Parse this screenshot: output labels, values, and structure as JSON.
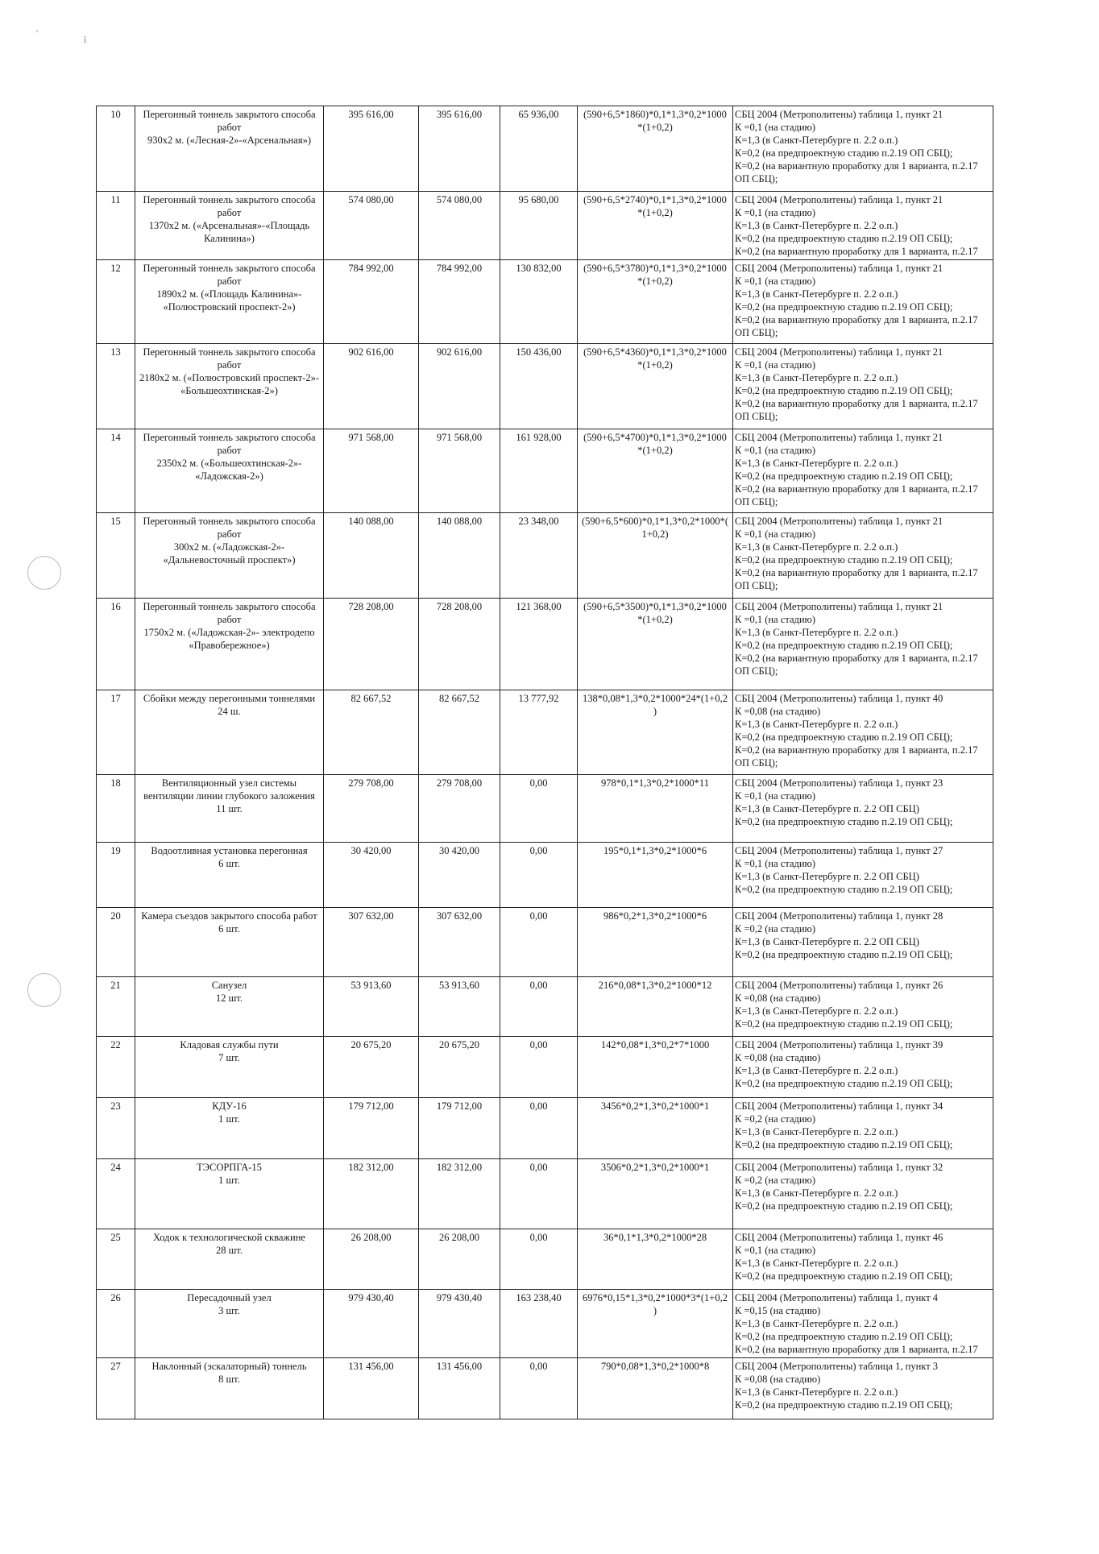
{
  "scan_marks": [
    "'",
    "ì"
  ],
  "rows": [
    {
      "num": "10",
      "name": "Перегонный тоннель закрытого способа\nработ\n930х2 м. («Лесная-2»-«Арсенальная»)",
      "v1": "395 616,00",
      "v2": "395 616,00",
      "v3": "65 936,00",
      "formula": "(590+6,5*1860)*0,1*1,3*0,2*1000\n*(1+0,2)",
      "basis": "СБЦ 2004 (Метрополитены) таблица 1, пункт 21\nК =0,1 (на стадию)\nК=1,3 (в Санкт-Петербурге п. 2.2 о.п.)\nК=0,2 (на предпроектную стадию п.2.19 ОП СБЦ);\nК=0,2 (на вариантную проработку для 1 варианта, п.2.17\nОП СБЦ);"
    },
    {
      "num": "11",
      "name": "Перегонный тоннель закрытого способа\nработ\n1370х2 м. («Арсенальная»-«Площадь\nКалинина»)",
      "v1": "574 080,00",
      "v2": "574 080,00",
      "v3": "95 680,00",
      "formula": "(590+6,5*2740)*0,1*1,3*0,2*1000\n*(1+0,2)",
      "basis": "СБЦ 2004 (Метрополитены) таблица 1, пункт 21\nК =0,1 (на стадию)\nК=1,3 (в Санкт-Петербурге п. 2.2 о.п.)\nК=0,2 (на предпроектную стадию п.2.19 ОП СБЦ);\nК=0,2 (на вариантную проработку для 1 варианта, п.2.17"
    },
    {
      "num": "12",
      "name": "Перегонный тоннель закрытого способа\nработ\n1890х2 м. («Площадь Калинина»-\n«Полюстровский проспект-2»)",
      "v1": "784 992,00",
      "v2": "784 992,00",
      "v3": "130 832,00",
      "formula": "(590+6,5*3780)*0,1*1,3*0,2*1000\n*(1+0,2)",
      "basis": "СБЦ 2004 (Метрополитены) таблица 1, пункт 21\nК =0,1 (на стадию)\nК=1,3 (в Санкт-Петербурге п. 2.2 о.п.)\nК=0,2 (на предпроектную стадию п.2.19 ОП СБЦ);\nК=0,2 (на вариантную проработку для 1 варианта, п.2.17\nОП СБЦ);"
    },
    {
      "num": "13",
      "name": "Перегонный тоннель закрытого способа\nработ\n2180х2 м. («Полюстровский проспект-2»-\n«Большеохтинская-2»)",
      "v1": "902 616,00",
      "v2": "902 616,00",
      "v3": "150 436,00",
      "formula": "(590+6,5*4360)*0,1*1,3*0,2*1000\n*(1+0,2)",
      "basis": "СБЦ 2004 (Метрополитены) таблица 1, пункт 21\nК =0,1 (на стадию)\nК=1,3 (в Санкт-Петербурге п. 2.2 о.п.)\nК=0,2 (на предпроектную стадию п.2.19 ОП СБЦ);\nК=0,2 (на вариантную проработку для 1 варианта, п.2.17\nОП СБЦ);"
    },
    {
      "num": "14",
      "name": "Перегонный тоннель закрытого способа\nработ\n2350х2  м. («Большеохтинская-2»-\n«Ладожская-2»)",
      "v1": "971 568,00",
      "v2": "971 568,00",
      "v3": "161 928,00",
      "formula": "(590+6,5*4700)*0,1*1,3*0,2*1000\n*(1+0,2)",
      "basis": "СБЦ 2004 (Метрополитены) таблица 1, пункт 21\nК =0,1 (на стадию)\nК=1,3 (в Санкт-Петербурге п. 2.2 о.п.)\nК=0,2 (на предпроектную стадию п.2.19 ОП СБЦ);\nК=0,2 (на вариантную проработку для 1 варианта, п.2.17\nОП СБЦ);"
    },
    {
      "num": "15",
      "name": "Перегонный тоннель закрытого способа\nработ\n300х2 м. («Ладожская-2»-\n«Дальневосточный проспект»)",
      "v1": "140 088,00",
      "v2": "140 088,00",
      "v3": "23 348,00",
      "formula": "(590+6,5*600)*0,1*1,3*0,2*1000*(\n1+0,2)",
      "basis": "СБЦ 2004 (Метрополитены) таблица 1, пункт 21\nК =0,1 (на стадию)\nК=1,3 (в Санкт-Петербурге п. 2.2 о.п.)\nК=0,2 (на предпроектную стадию п.2.19 ОП СБЦ);\nК=0,2 (на вариантную проработку для 1 варианта, п.2.17\nОП СБЦ);"
    },
    {
      "num": "16",
      "name": "Перегонный тоннель закрытого способа\nработ\n1750х2  м. («Ладожская-2»- электродепо\n«Правобережное»)",
      "v1": "728 208,00",
      "v2": "728 208,00",
      "v3": "121 368,00",
      "formula": "(590+6,5*3500)*0,1*1,3*0,2*1000\n*(1+0,2)",
      "basis": "СБЦ 2004 (Метрополитены) таблица 1, пункт 21\nК =0,1 (на стадию)\nК=1,3 (в Санкт-Петербурге п. 2.2 о.п.)\nК=0,2 (на предпроектную стадию п.2.19 ОП СБЦ);\nК=0,2 (на вариантную проработку для 1 варианта, п.2.17\nОП СБЦ);"
    },
    {
      "num": "17",
      "name": "Сбойки между перегонными тоннелями\n24 ш.",
      "v1": "82 667,52",
      "v2": "82 667,52",
      "v3": "13 777,92",
      "formula": "138*0,08*1,3*0,2*1000*24*(1+0,2\n)",
      "basis": "СБЦ 2004 (Метрополитены) таблица 1, пункт 40\nК =0,08 (на стадию)\nК=1,3 (в Санкт-Петербурге п. 2.2 о.п.)\nК=0,2 (на предпроектную стадию п.2.19 ОП СБЦ);\nК=0,2 (на вариантную проработку для 1 варианта, п.2.17\nОП СБЦ);"
    },
    {
      "num": "18",
      "name": "Вентиляционный узел системы\nвентиляции линии глубокого заложения\n11 шт.",
      "v1": "279 708,00",
      "v2": "279 708,00",
      "v3": "0,00",
      "formula": "978*0,1*1,3*0,2*1000*11",
      "basis": "СБЦ 2004 (Метрополитены) таблица 1, пункт 23\nК =0,1 (на стадию)\nК=1,3 (в Санкт-Петербурге п. 2.2 ОП СБЦ)\nК=0,2 (на предпроектную стадию п.2.19 ОП СБЦ);"
    },
    {
      "num": "19",
      "name": "Водоотливная установка перегонная\n6 шт.",
      "v1": "30 420,00",
      "v2": "30 420,00",
      "v3": "0,00",
      "formula": "195*0,1*1,3*0,2*1000*6",
      "basis": "СБЦ 2004 (Метрополитены) таблица 1, пункт 27\nК =0,1 (на стадию)\nК=1,3 (в Санкт-Петербурге п. 2.2 ОП СБЦ)\nК=0,2 (на предпроектную стадию п.2.19 ОП СБЦ);"
    },
    {
      "num": "20",
      "name": "Камера съездов закрытого способа работ\n6 шт.",
      "v1": "307 632,00",
      "v2": "307 632,00",
      "v3": "0,00",
      "formula": "986*0,2*1,3*0,2*1000*6",
      "basis": "СБЦ 2004 (Метрополитены) таблица 1, пункт 28\nК =0,2 (на стадию)\nК=1,3 (в Санкт-Петербурге п. 2.2 ОП СБЦ)\nК=0,2 (на предпроектную стадию п.2.19 ОП СБЦ);"
    },
    {
      "num": "21",
      "name": "Санузел\n12 шт.",
      "v1": "53 913,60",
      "v2": "53 913,60",
      "v3": "0,00",
      "formula": "216*0,08*1,3*0,2*1000*12",
      "basis": "СБЦ 2004 (Метрополитены) таблица 1, пункт 26\nК =0,08 (на стадию)\nК=1,3 (в Санкт-Петербурге п. 2.2 о.п.)\nК=0,2 (на предпроектную стадию п.2.19 ОП СБЦ);"
    },
    {
      "num": "22",
      "name": "Кладовая службы пути\n7 шт.",
      "v1": "20 675,20",
      "v2": "20 675,20",
      "v3": "0,00",
      "formula": "142*0,08*1,3*0,2*7*1000",
      "basis": "СБЦ 2004 (Метрополитены) таблица 1, пункт 39\nК =0,08 (на стадию)\nК=1,3 (в Санкт-Петербурге п. 2.2 о.п.)\nК=0,2 (на предпроектную стадию п.2.19 ОП СБЦ);"
    },
    {
      "num": "23",
      "name": "КДУ-16\n1 шт.",
      "v1": "179 712,00",
      "v2": "179 712,00",
      "v3": "0,00",
      "formula": "3456*0,2*1,3*0,2*1000*1",
      "basis": "СБЦ 2004 (Метрополитены) таблица 1, пункт 34\nК =0,2 (на стадию)\nК=1,3 (в Санкт-Петербурге п. 2.2 о.п.)\nК=0,2 (на предпроектную стадию п.2.19 ОП СБЦ);"
    },
    {
      "num": "24",
      "name": "ТЭСОРПГА-15\n1 шт.",
      "v1": "182 312,00",
      "v2": "182 312,00",
      "v3": "0,00",
      "formula": "3506*0,2*1,3*0,2*1000*1",
      "basis": "СБЦ 2004 (Метрополитены) таблица 1, пункт 32\nК =0,2 (на стадию)\nК=1,3 (в Санкт-Петербурге п. 2.2 о.п.)\nК=0,2 (на предпроектную стадию п.2.19 ОП СБЦ);"
    },
    {
      "num": "25",
      "name": "Ходок к технологической скважине\n28 шт.",
      "v1": "26 208,00",
      "v2": "26 208,00",
      "v3": "0,00",
      "formula": "36*0,1*1,3*0,2*1000*28",
      "basis": "СБЦ 2004 (Метрополитены) таблица 1, пункт 46\nК =0,1 (на стадию)\nК=1,3 (в Санкт-Петербурге п. 2.2 о.п.)\nК=0,2 (на предпроектную стадию п.2.19 ОП СБЦ);"
    },
    {
      "num": "26",
      "name": "Пересадочный узел\n3 шт.",
      "v1": "979 430,40",
      "v2": "979 430,40",
      "v3": "163 238,40",
      "formula": "6976*0,15*1,3*0,2*1000*3*(1+0,2\n)",
      "basis": "СБЦ 2004 (Метрополитены) таблица 1, пункт 4\nК =0,15 (на стадию)\nК=1,3 (в Санкт-Петербурге п. 2.2 о.п.)\nК=0,2 (на предпроектную стадию п.2.19 ОП СБЦ);\nК=0,2 (на вариантную проработку для 1 варианта, п.2.17"
    },
    {
      "num": "27",
      "name": "Наклонный (эскалаторный) тоннель\n8 шт.",
      "v1": "131 456,00",
      "v2": "131 456,00",
      "v3": "0,00",
      "formula": "790*0,08*1,3*0,2*1000*8",
      "basis": "СБЦ 2004 (Метрополитены) таблица 1, пункт 3\nК =0,08 (на стадию)\nК=1,3 (в Санкт-Петербурге п. 2.2 о.п.)\nК=0,2 (на предпроектную стадию п.2.19 ОП СБЦ);"
    }
  ]
}
